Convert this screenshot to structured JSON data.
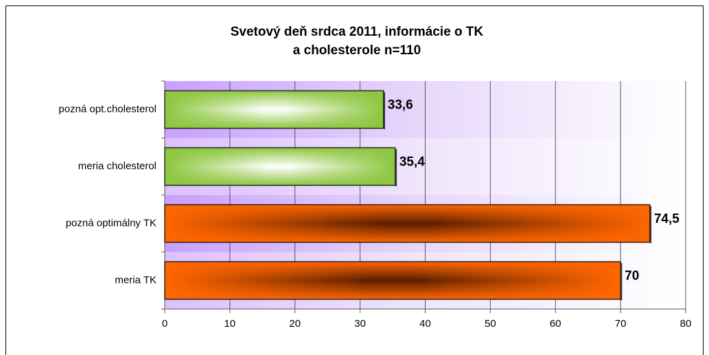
{
  "chart_data": {
    "type": "hbar",
    "title": [
      "Svetový deň srdca 2011, informácie o TK",
      "a cholesterole n=110"
    ],
    "categories": [
      "pozná opt.cholesterol",
      "meria cholesterol",
      "pozná optimálny TK",
      "meria TK"
    ],
    "values": [
      33.6,
      35.4,
      74.5,
      70
    ],
    "value_labels": [
      "33,6",
      "35,4",
      "74,5",
      "70"
    ],
    "colors": [
      "#8dc63f",
      "#8dc63f",
      "#ff6600",
      "#ff6600"
    ],
    "xlim": [
      0,
      80
    ],
    "xticks": [
      0,
      10,
      20,
      30,
      40,
      50,
      60,
      70,
      80
    ],
    "grid": true
  }
}
